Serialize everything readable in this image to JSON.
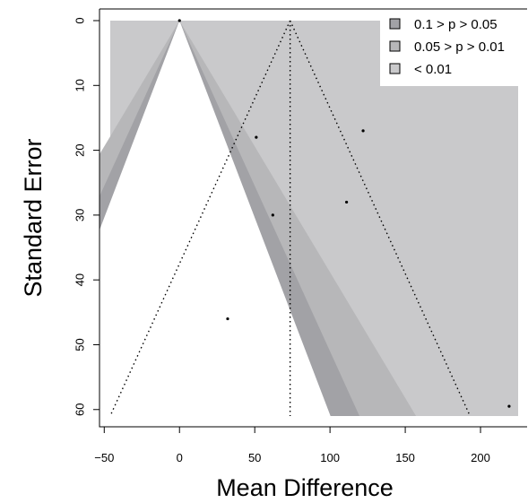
{
  "chart_data": {
    "type": "scatter",
    "subtype": "contour-enhanced funnel plot",
    "title": "",
    "xlabel": "Mean Difference",
    "ylabel": "Standard Error",
    "xlim": [
      -46,
      225
    ],
    "ylim_reversed": [
      0,
      61
    ],
    "x_ticks": [
      -50,
      0,
      50,
      100,
      150,
      200
    ],
    "x_tick_labels": [
      "−50",
      "0",
      "50",
      "100",
      "150",
      "200"
    ],
    "y_ticks": [
      0,
      10,
      20,
      30,
      40,
      50,
      60
    ],
    "y_tick_labels": [
      "0",
      "10",
      "20",
      "30",
      "40",
      "50",
      "60"
    ],
    "reference_null": 0,
    "pooled_estimate": 73.5,
    "contour_z": [
      1.645,
      1.96,
      2.576
    ],
    "contour_colors": [
      "#ffffff",
      "#a2a2a6",
      "#b7b7b9",
      "#c9c9cb"
    ],
    "legend": {
      "placement": "top-right",
      "entries": [
        {
          "label": "0.1 > p > 0.05",
          "color": "#a2a2a6"
        },
        {
          "label": "0.05 > p > 0.01",
          "color": "#b7b7b9"
        },
        {
          "label": "< 0.01",
          "color": "#c9c9cb"
        }
      ]
    },
    "points": [
      {
        "x": 0,
        "y": 0
      },
      {
        "x": 122,
        "y": 17
      },
      {
        "x": 51,
        "y": 18
      },
      {
        "x": 111,
        "y": 28
      },
      {
        "x": 62,
        "y": 30
      },
      {
        "x": 32,
        "y": 46
      },
      {
        "x": 219,
        "y": 59.5
      }
    ]
  }
}
